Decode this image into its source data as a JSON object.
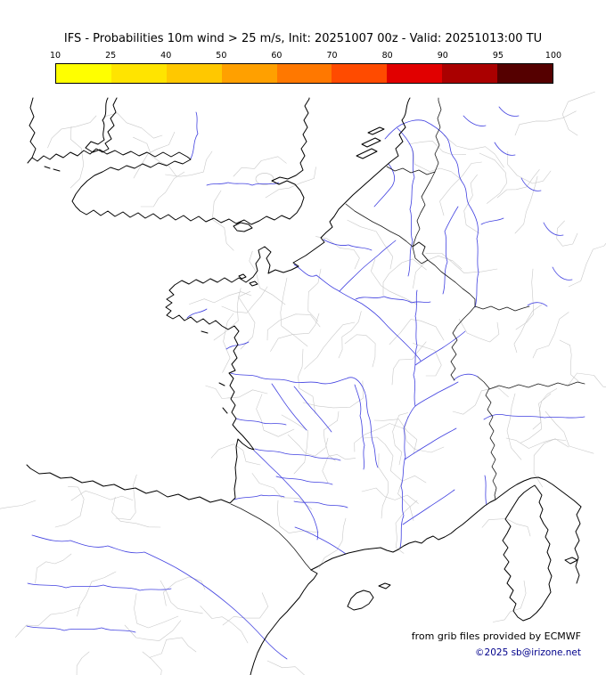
{
  "header": {
    "title": "IFS - Probabilities 10m wind > 25 m/s, Init: 20251007 00z - Valid: 20251013:00 TU"
  },
  "colorbar": {
    "unit": "%",
    "tick_labels": [
      "10",
      "25",
      "40",
      "50",
      "60",
      "70",
      "80",
      "90",
      "95",
      "100"
    ],
    "segment_colors": [
      "#ffff00",
      "#ffe400",
      "#ffc800",
      "#ffa000",
      "#ff7800",
      "#ff4b00",
      "#e10000",
      "#aa0000",
      "#550000"
    ]
  },
  "map": {
    "attribution_line1": "from grib files provided by ECMWF",
    "attribution_line2": "©2025 sb@irizone.net",
    "colors": {
      "coastline": "#000000",
      "country_border": "#1a1a1a",
      "river": "#4040e0",
      "admin_boundary": "#c9c9c9",
      "copyright_text": "#00008b"
    }
  }
}
